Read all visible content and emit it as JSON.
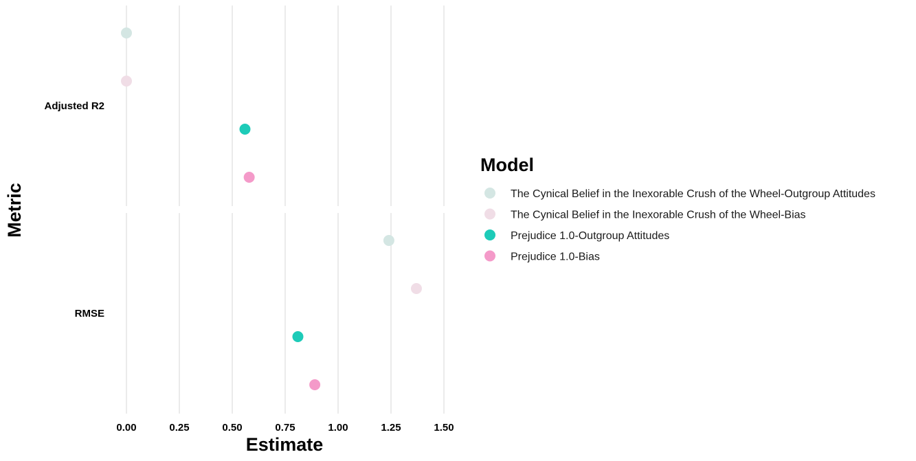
{
  "chart_data": {
    "type": "scatter",
    "xlabel": "Estimate",
    "ylabel": "Metric",
    "panels": [
      "Adjusted R2",
      "RMSE"
    ],
    "x_ticks": [
      "0.00",
      "0.25",
      "0.50",
      "0.75",
      "1.00",
      "1.25",
      "1.50"
    ],
    "x_tick_values": [
      0,
      0.25,
      0.5,
      0.75,
      1.0,
      1.25,
      1.5
    ],
    "xlim": [
      0,
      1.5
    ],
    "grid": true,
    "legend": {
      "title": "Model",
      "placement": "right"
    },
    "series": [
      {
        "name": "The Cynical Belief in the Inexorable Crush of the Wheel-Outgroup Attitudes",
        "color": "#d4e6e3",
        "values": [
          0.0,
          1.24
        ]
      },
      {
        "name": "The Cynical Belief in the Inexorable Crush of the Wheel-Bias",
        "color": "#f0dde6",
        "values": [
          0.0,
          1.37
        ]
      },
      {
        "name": "Prejudice 1.0-Outgroup Attitudes",
        "color": "#1dcbb8",
        "values": [
          0.56,
          0.81
        ]
      },
      {
        "name": "Prejudice 1.0-Bias",
        "color": "#f49ac9",
        "values": [
          0.58,
          0.89
        ]
      }
    ]
  }
}
